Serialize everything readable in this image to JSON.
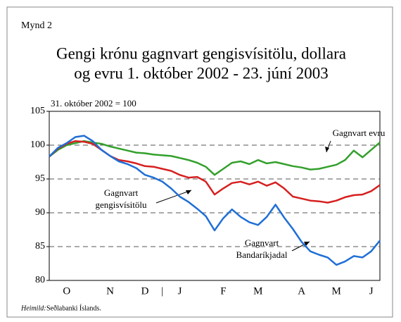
{
  "chart_data": {
    "type": "line",
    "label": "Mynd 2",
    "title": [
      "Gengi krónu gagnvart gengisvísitölu, dollara",
      "og evru 1. október 2002 - 23. júní 2003"
    ],
    "subtitle": "31. október 2002 = 100",
    "source": {
      "label": "Heimild:",
      "text": "Seðlabanki Íslands."
    },
    "categories": [
      null,
      null,
      "O",
      null,
      null,
      null,
      null,
      "N",
      null,
      null,
      null,
      "D",
      null,
      "|",
      null,
      "J",
      null,
      null,
      null,
      null,
      "F",
      null,
      null,
      null,
      "M",
      null,
      null,
      null,
      null,
      "A",
      null,
      null,
      null,
      "M",
      null,
      null,
      null,
      "J",
      null
    ],
    "ylim": [
      80,
      105
    ],
    "yticks": [
      80,
      85,
      90,
      95,
      100,
      105
    ],
    "grid": true,
    "series": [
      {
        "name": [
          "Gagnvart evru"
        ],
        "color": "#33a02c",
        "values": [
          98.3,
          99.3,
          100,
          100.3,
          100.6,
          100.4,
          100.2,
          99.8,
          99.5,
          99.2,
          98.9,
          98.8,
          98.6,
          98.5,
          98.4,
          98.1,
          97.8,
          97.4,
          96.8,
          95.6,
          96.5,
          97.4,
          97.6,
          97.2,
          97.8,
          97.3,
          97.5,
          97.2,
          96.9,
          96.7,
          96.4,
          96.5,
          96.8,
          97.1,
          97.8,
          99.2,
          98.2,
          99.3,
          100.4
        ]
      },
      {
        "name": [
          "Gagnvart",
          "gengisvísitölu"
        ],
        "color": "#d62020",
        "values": [
          98.3,
          99.5,
          100.2,
          100.6,
          100.5,
          100.2,
          99.3,
          98.4,
          97.8,
          97.6,
          97.3,
          96.9,
          96.8,
          96.5,
          96.2,
          95.6,
          95.2,
          95.3,
          94.6,
          92.7,
          93.6,
          94.4,
          94.6,
          94.2,
          94.6,
          94.0,
          94.5,
          93.6,
          92.4,
          92.1,
          91.8,
          91.7,
          91.5,
          91.8,
          92.3,
          92.6,
          92.7,
          93.2,
          94.1
        ]
      },
      {
        "name": [
          "Gagnvart",
          "Bandaríkjadal"
        ],
        "color": "#1f6fd6",
        "values": [
          98.3,
          99.6,
          100.3,
          101.2,
          101.4,
          100.6,
          99.3,
          98.4,
          97.6,
          97.2,
          96.6,
          95.6,
          95.2,
          94.6,
          93.6,
          92.4,
          91.6,
          90.6,
          89.5,
          87.4,
          89.2,
          90.5,
          89.4,
          88.6,
          88.2,
          89.4,
          91.2,
          89.3,
          87.6,
          85.7,
          84.3,
          83.8,
          83.4,
          82.3,
          82.8,
          83.6,
          83.4,
          84.3,
          85.9
        ]
      }
    ]
  }
}
